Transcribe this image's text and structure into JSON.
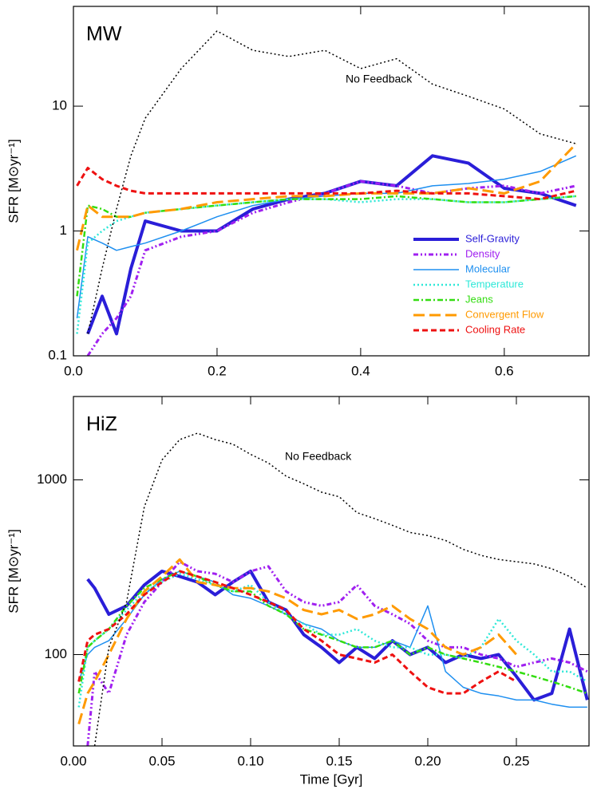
{
  "chart_data": [
    {
      "type": "line",
      "annotation": "MW",
      "note": "No Feedback",
      "ylabel": "SFR  [M⊙yr⁻¹]",
      "log_y": true,
      "xlim": [
        0,
        0.718
      ],
      "ylim": [
        0.1,
        63
      ],
      "xticks": [
        {
          "value": 0,
          "label": "0.0"
        },
        {
          "value": 0.2,
          "label": "0.2"
        },
        {
          "value": 0.4,
          "label": "0.4"
        },
        {
          "value": 0.6,
          "label": "0.6"
        }
      ],
      "yticks": [
        0.1,
        1,
        10
      ],
      "x": [
        0.005,
        0.02,
        0.04,
        0.06,
        0.08,
        0.1,
        0.15,
        0.2,
        0.25,
        0.3,
        0.35,
        0.4,
        0.45,
        0.5,
        0.55,
        0.6,
        0.65,
        0.7
      ],
      "series": [
        {
          "name": "Self-Gravity",
          "color": "#2a1ed8",
          "style": "solid",
          "linewidth": 4,
          "values": [
            null,
            0.15,
            0.3,
            0.15,
            0.5,
            1.2,
            1.0,
            1.0,
            1.5,
            1.8,
            2.0,
            2.5,
            2.3,
            4,
            3.5,
            2.2,
            2.0,
            1.6
          ]
        },
        {
          "name": "Density",
          "color": "#a020f0",
          "style": "dash-dot-dot",
          "linewidth": 3,
          "values": [
            null,
            0.1,
            0.15,
            0.2,
            0.3,
            0.7,
            0.9,
            1.0,
            1.4,
            1.7,
            2.0,
            2.5,
            2.3,
            2.0,
            2.2,
            2.3,
            2.0,
            2.3
          ]
        },
        {
          "name": "Molecular",
          "color": "#1e8ff0",
          "style": "solid",
          "linewidth": 1.5,
          "values": [
            0.2,
            0.9,
            0.8,
            0.7,
            0.75,
            0.8,
            1.0,
            1.3,
            1.6,
            1.8,
            1.9,
            2.0,
            2.0,
            2.3,
            2.4,
            2.6,
            3.0,
            4.0
          ]
        },
        {
          "name": "Temperature",
          "color": "#2ee8d8",
          "style": "dotted",
          "linewidth": 2.5,
          "values": [
            0.15,
            0.8,
            1.0,
            1.2,
            1.3,
            1.4,
            1.5,
            1.6,
            1.7,
            1.8,
            1.8,
            1.7,
            1.8,
            1.8,
            1.7,
            1.7,
            1.8,
            1.9
          ]
        },
        {
          "name": "Jeans",
          "color": "#33dd11",
          "style": "dash-dot",
          "linewidth": 2.5,
          "values": [
            0.3,
            1.6,
            1.5,
            1.3,
            1.3,
            1.4,
            1.5,
            1.6,
            1.7,
            1.8,
            1.8,
            1.8,
            1.9,
            1.8,
            1.7,
            1.7,
            1.8,
            1.9
          ]
        },
        {
          "name": "Convergent Flow",
          "color": "#ff9a00",
          "style": "long-dash",
          "linewidth": 3,
          "values": [
            0.7,
            1.6,
            1.3,
            1.3,
            1.3,
            1.4,
            1.5,
            1.7,
            1.8,
            1.9,
            1.9,
            2.0,
            2.0,
            2.0,
            2.2,
            2.0,
            2.5,
            5.0
          ]
        },
        {
          "name": "Cooling Rate",
          "color": "#ee1111",
          "style": "dashed",
          "linewidth": 3,
          "values": [
            2.3,
            3.2,
            2.6,
            2.3,
            2.1,
            2.0,
            2.0,
            2.0,
            2.0,
            2.0,
            2.0,
            2.0,
            2.1,
            2.0,
            2.0,
            1.9,
            1.8,
            2.1
          ]
        },
        {
          "color": "#000000",
          "style": "dotted",
          "linewidth": 1.5,
          "values": [
            null,
            0.15,
            0.5,
            1.5,
            4,
            8,
            20,
            40,
            28,
            25,
            28,
            20,
            24,
            15,
            12,
            9.5,
            6,
            5
          ]
        }
      ]
    },
    {
      "type": "line",
      "annotation": "HiZ",
      "note": "No Feedback",
      "ylabel": "SFR  [M⊙yr⁻¹]",
      "xlabel": "Time  [Gyr]",
      "log_y": true,
      "xlim": [
        0,
        0.291
      ],
      "ylim": [
        30,
        3000
      ],
      "xticks": [
        {
          "value": 0,
          "label": "0.00"
        },
        {
          "value": 0.05,
          "label": "0.05"
        },
        {
          "value": 0.1,
          "label": "0.10"
        },
        {
          "value": 0.15,
          "label": "0.15"
        },
        {
          "value": 0.2,
          "label": "0.20"
        },
        {
          "value": 0.25,
          "label": "0.25"
        }
      ],
      "yticks": [
        100,
        1000
      ],
      "x": [
        0.003,
        0.008,
        0.012,
        0.02,
        0.03,
        0.04,
        0.05,
        0.06,
        0.07,
        0.08,
        0.09,
        0.1,
        0.11,
        0.12,
        0.13,
        0.14,
        0.15,
        0.16,
        0.17,
        0.18,
        0.19,
        0.2,
        0.21,
        0.22,
        0.23,
        0.24,
        0.25,
        0.26,
        0.27,
        0.28,
        0.29
      ],
      "series": [
        {
          "color": "#2a1ed8",
          "style": "solid",
          "linewidth": 4,
          "values": [
            null,
            270,
            240,
            170,
            190,
            250,
            300,
            280,
            260,
            220,
            260,
            300,
            200,
            180,
            130,
            110,
            90,
            110,
            95,
            120,
            100,
            110,
            90,
            100,
            95,
            100,
            75,
            55,
            60,
            140,
            55
          ]
        },
        {
          "color": "#a020f0",
          "style": "dash-dot-dot",
          "linewidth": 3,
          "values": [
            null,
            30,
            80,
            60,
            130,
            200,
            260,
            340,
            300,
            290,
            260,
            300,
            320,
            230,
            200,
            190,
            200,
            250,
            190,
            170,
            150,
            120,
            110,
            110,
            100,
            95,
            85,
            90,
            95,
            90,
            80
          ]
        },
        {
          "color": "#1e8ff0",
          "style": "solid",
          "linewidth": 1.5,
          "values": [
            70,
            100,
            110,
            120,
            160,
            220,
            270,
            300,
            280,
            260,
            220,
            210,
            190,
            170,
            150,
            140,
            120,
            110,
            110,
            120,
            110,
            190,
            80,
            65,
            60,
            58,
            55,
            55,
            52,
            50,
            50
          ]
        },
        {
          "color": "#2ee8d8",
          "style": "dotted",
          "linewidth": 2.5,
          "values": [
            50,
            110,
            120,
            140,
            180,
            230,
            260,
            290,
            270,
            250,
            230,
            250,
            200,
            170,
            150,
            130,
            130,
            140,
            120,
            110,
            110,
            100,
            100,
            95,
            110,
            160,
            120,
            100,
            80,
            80,
            70
          ]
        },
        {
          "color": "#33dd11",
          "style": "dash-dot",
          "linewidth": 2.5,
          "values": [
            60,
            110,
            120,
            140,
            190,
            240,
            270,
            300,
            280,
            250,
            230,
            230,
            190,
            170,
            140,
            130,
            120,
            110,
            110,
            120,
            100,
            110,
            100,
            95,
            90,
            85,
            80,
            75,
            70,
            65,
            60
          ]
        },
        {
          "color": "#ff9a00",
          "style": "long-dash",
          "linewidth": 3,
          "values": [
            40,
            60,
            70,
            100,
            160,
            230,
            280,
            350,
            260,
            250,
            240,
            240,
            230,
            210,
            180,
            170,
            180,
            160,
            170,
            190,
            160,
            140,
            110,
            100,
            110,
            130,
            100,
            null,
            null,
            null,
            null
          ]
        },
        {
          "color": "#ee1111",
          "style": "dashed",
          "linewidth": 3,
          "values": [
            70,
            120,
            130,
            140,
            170,
            220,
            260,
            300,
            280,
            260,
            240,
            220,
            200,
            180,
            140,
            120,
            100,
            95,
            90,
            100,
            80,
            65,
            60,
            60,
            70,
            80,
            70,
            null,
            null,
            null,
            null
          ]
        },
        {
          "color": "#000000",
          "style": "dotted",
          "linewidth": 1.5,
          "values": [
            null,
            null,
            30,
            110,
            200,
            700,
            1300,
            1700,
            1850,
            1700,
            1600,
            1400,
            1250,
            1050,
            950,
            850,
            800,
            650,
            600,
            550,
            500,
            480,
            450,
            400,
            370,
            350,
            340,
            330,
            310,
            280,
            240
          ]
        }
      ]
    }
  ]
}
